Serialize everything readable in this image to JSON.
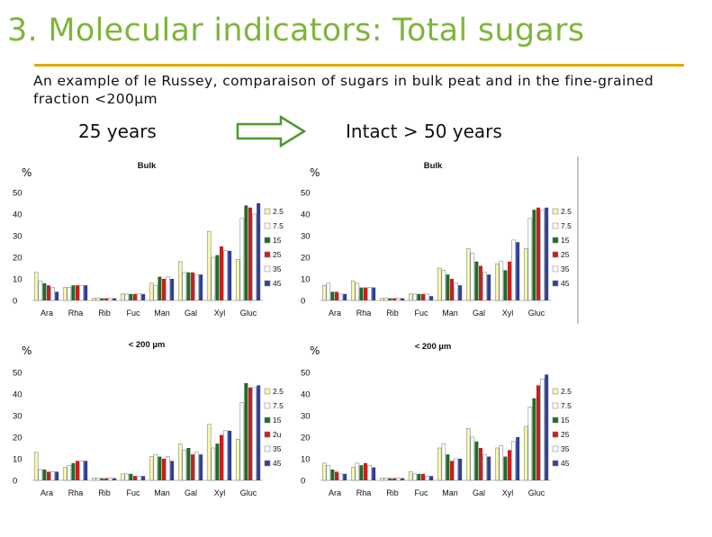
{
  "slide": {
    "title": "3. Molecular indicators: Total sugars",
    "subtitle": "An example of le Russey, comparaison of sugars in bulk peat and in the fine-grained fraction <200µm",
    "label_left": "25 years",
    "label_right": "Intact > 50 years",
    "percent_label": "%"
  },
  "colors": {
    "title": "#7fb53a",
    "rule": "#e2a800",
    "series": [
      "#f4f8b0",
      "#ffffff",
      "#1f6b2a",
      "#c81e1e",
      "#ffffff",
      "#2f3f9a"
    ],
    "arrow": "#4a9a2e"
  },
  "chart_data": [
    {
      "type": "bar",
      "title": "Bulk",
      "ylabel": "%",
      "ylim": [
        0,
        50
      ],
      "yticks": [
        "0",
        "10",
        "20",
        "30",
        "40",
        "50"
      ],
      "categories": [
        "Ara",
        "Rha",
        "Rib",
        "Fuc",
        "Man",
        "Gal",
        "Xyl",
        "Gluc"
      ],
      "series": [
        {
          "name": "2.5",
          "values": [
            13,
            6,
            1,
            3,
            8,
            18,
            32,
            19
          ]
        },
        {
          "name": "7.5",
          "values": [
            9,
            6,
            1,
            3,
            7,
            13,
            20,
            38
          ]
        },
        {
          "name": "15",
          "values": [
            8,
            7,
            1,
            3,
            11,
            13,
            21,
            44
          ]
        },
        {
          "name": "25",
          "values": [
            7,
            7,
            1,
            3,
            10,
            13,
            25,
            43
          ]
        },
        {
          "name": "35",
          "values": [
            6,
            7,
            1,
            3,
            11,
            12,
            23,
            40
          ]
        },
        {
          "name": "45",
          "values": [
            4,
            7,
            1,
            3,
            10,
            12,
            23,
            45
          ]
        }
      ]
    },
    {
      "type": "bar",
      "title": "Bulk",
      "ylabel": "%",
      "ylim": [
        0,
        50
      ],
      "yticks": [
        "0",
        "10",
        "20",
        "30",
        "40",
        "50"
      ],
      "categories": [
        "Ara",
        "Rha",
        "Rib",
        "Fuc",
        "Man",
        "Gal",
        "Xyl",
        "Gluc"
      ],
      "series": [
        {
          "name": "2.5",
          "values": [
            7,
            9,
            1,
            3,
            15,
            24,
            17,
            24
          ]
        },
        {
          "name": "7.5",
          "values": [
            8,
            8,
            1,
            3,
            14,
            22,
            18,
            38
          ]
        },
        {
          "name": "15",
          "values": [
            4,
            6,
            1,
            3,
            12,
            18,
            14,
            42
          ]
        },
        {
          "name": "25",
          "values": [
            4,
            6,
            1,
            3,
            10,
            16,
            18,
            43
          ]
        },
        {
          "name": "35",
          "values": [
            3,
            6,
            1,
            3,
            8,
            13,
            28,
            42
          ]
        },
        {
          "name": "45",
          "values": [
            3,
            6,
            1,
            2,
            7,
            12,
            27,
            43
          ]
        }
      ]
    },
    {
      "type": "bar",
      "title": "< 200 µm",
      "ylabel": "%",
      "ylim": [
        0,
        50
      ],
      "yticks": [
        "0",
        "10",
        "20",
        "30",
        "40",
        "50"
      ],
      "categories": [
        "Ara",
        "Rha",
        "Rib",
        "Fuc",
        "Man",
        "Gal",
        "Xyl",
        "Gluc"
      ],
      "series": [
        {
          "name": "2.5",
          "values": [
            13,
            6,
            1,
            3,
            11,
            17,
            26,
            19
          ]
        },
        {
          "name": "7.5",
          "values": [
            5,
            7,
            1,
            3,
            12,
            14,
            15,
            36
          ]
        },
        {
          "name": "15",
          "values": [
            5,
            8,
            1,
            3,
            11,
            15,
            17,
            45
          ]
        },
        {
          "name": "2u",
          "values": [
            4,
            9,
            1,
            2,
            10,
            12,
            21,
            43
          ]
        },
        {
          "name": "35",
          "values": [
            4,
            9,
            1,
            2,
            11,
            13,
            23,
            43
          ]
        },
        {
          "name": "45",
          "values": [
            4,
            9,
            1,
            2,
            9,
            12,
            23,
            44
          ]
        }
      ]
    },
    {
      "type": "bar",
      "title": "< 200 µm",
      "ylabel": "%",
      "ylim": [
        0,
        50
      ],
      "yticks": [
        "0",
        "10",
        "20",
        "30",
        "40",
        "50"
      ],
      "categories": [
        "Ara",
        "Rha",
        "Rib",
        "Fuc",
        "Man",
        "Gal",
        "Xyl",
        "Gluc"
      ],
      "series": [
        {
          "name": "2.5",
          "values": [
            8,
            6,
            1,
            4,
            15,
            24,
            15,
            25
          ]
        },
        {
          "name": "7.5",
          "values": [
            7,
            8,
            1,
            3,
            17,
            20,
            16,
            34
          ]
        },
        {
          "name": "15",
          "values": [
            5,
            7,
            1,
            3,
            12,
            18,
            11,
            38
          ]
        },
        {
          "name": "25",
          "values": [
            4,
            8,
            1,
            3,
            9,
            15,
            14,
            44
          ]
        },
        {
          "name": "35",
          "values": [
            3,
            7,
            1,
            2,
            10,
            12,
            18,
            47
          ]
        },
        {
          "name": "45",
          "values": [
            3,
            6,
            1,
            2,
            10,
            11,
            20,
            49
          ]
        }
      ]
    }
  ]
}
